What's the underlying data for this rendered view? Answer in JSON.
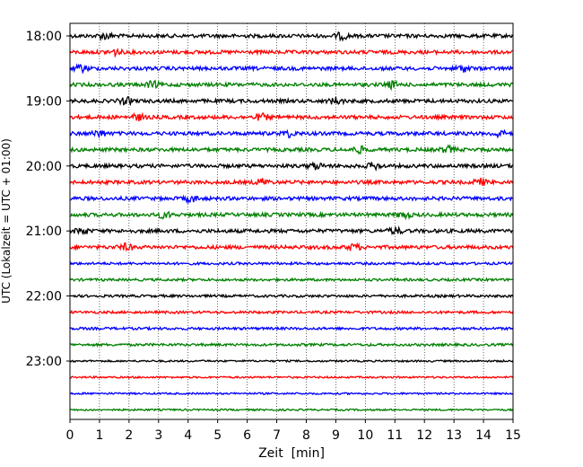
{
  "chart_data": {
    "type": "line",
    "title": "",
    "xlabel": "Zeit  [min]",
    "ylabel": "UTC (Lokalzeit = UTC + 01:00)",
    "xlim": [
      0,
      15
    ],
    "x_ticks": [
      "0",
      "1",
      "2",
      "3",
      "4",
      "5",
      "6",
      "7",
      "8",
      "9",
      "10",
      "11",
      "12",
      "13",
      "14",
      "15"
    ],
    "y_ticks": [
      "18:00",
      "19:00",
      "20:00",
      "21:00",
      "22:00",
      "23:00"
    ],
    "grid": "vertical dotted at each minute",
    "legend": "none",
    "trace_interval_min": 15,
    "series": [
      {
        "start": "18:00",
        "color": "#000000",
        "bursts_min": [
          1.2,
          9.2
        ]
      },
      {
        "start": "18:15",
        "color": "#ff0000",
        "bursts_min": [
          1.5
        ]
      },
      {
        "start": "18:30",
        "color": "#0000ff",
        "bursts_min": [
          0.4,
          13.3
        ]
      },
      {
        "start": "18:45",
        "color": "#008000",
        "bursts_min": [
          2.8,
          10.9
        ]
      },
      {
        "start": "19:00",
        "color": "#000000",
        "bursts_min": [
          1.9,
          9.0
        ]
      },
      {
        "start": "19:15",
        "color": "#ff0000",
        "bursts_min": [
          2.3,
          6.5
        ]
      },
      {
        "start": "19:30",
        "color": "#0000ff",
        "bursts_min": [
          1.0,
          7.4,
          14.5
        ]
      },
      {
        "start": "19:45",
        "color": "#008000",
        "bursts_min": [
          9.8,
          12.8
        ]
      },
      {
        "start": "20:00",
        "color": "#000000",
        "bursts_min": [
          8.3,
          10.3
        ]
      },
      {
        "start": "20:15",
        "color": "#ff0000",
        "bursts_min": [
          6.5,
          13.9
        ]
      },
      {
        "start": "20:30",
        "color": "#0000ff",
        "bursts_min": [
          4.1
        ]
      },
      {
        "start": "20:45",
        "color": "#008000",
        "bursts_min": [
          3.2,
          11.3
        ]
      },
      {
        "start": "21:00",
        "color": "#000000",
        "bursts_min": [
          0.4,
          11.0
        ]
      },
      {
        "start": "21:15",
        "color": "#ff0000",
        "bursts_min": [
          1.9,
          9.6
        ]
      },
      {
        "start": "21:30",
        "color": "#0000ff",
        "bursts_min": []
      },
      {
        "start": "21:45",
        "color": "#008000",
        "bursts_min": []
      },
      {
        "start": "22:00",
        "color": "#000000",
        "bursts_min": []
      },
      {
        "start": "22:15",
        "color": "#ff0000",
        "bursts_min": []
      },
      {
        "start": "22:30",
        "color": "#0000ff",
        "bursts_min": []
      },
      {
        "start": "22:45",
        "color": "#008000",
        "bursts_min": []
      },
      {
        "start": "23:00",
        "color": "#000000",
        "bursts_min": []
      },
      {
        "start": "23:15",
        "color": "#ff0000",
        "bursts_min": []
      },
      {
        "start": "23:30",
        "color": "#0000ff",
        "bursts_min": []
      },
      {
        "start": "23:45",
        "color": "#008000",
        "bursts_min": []
      }
    ]
  }
}
